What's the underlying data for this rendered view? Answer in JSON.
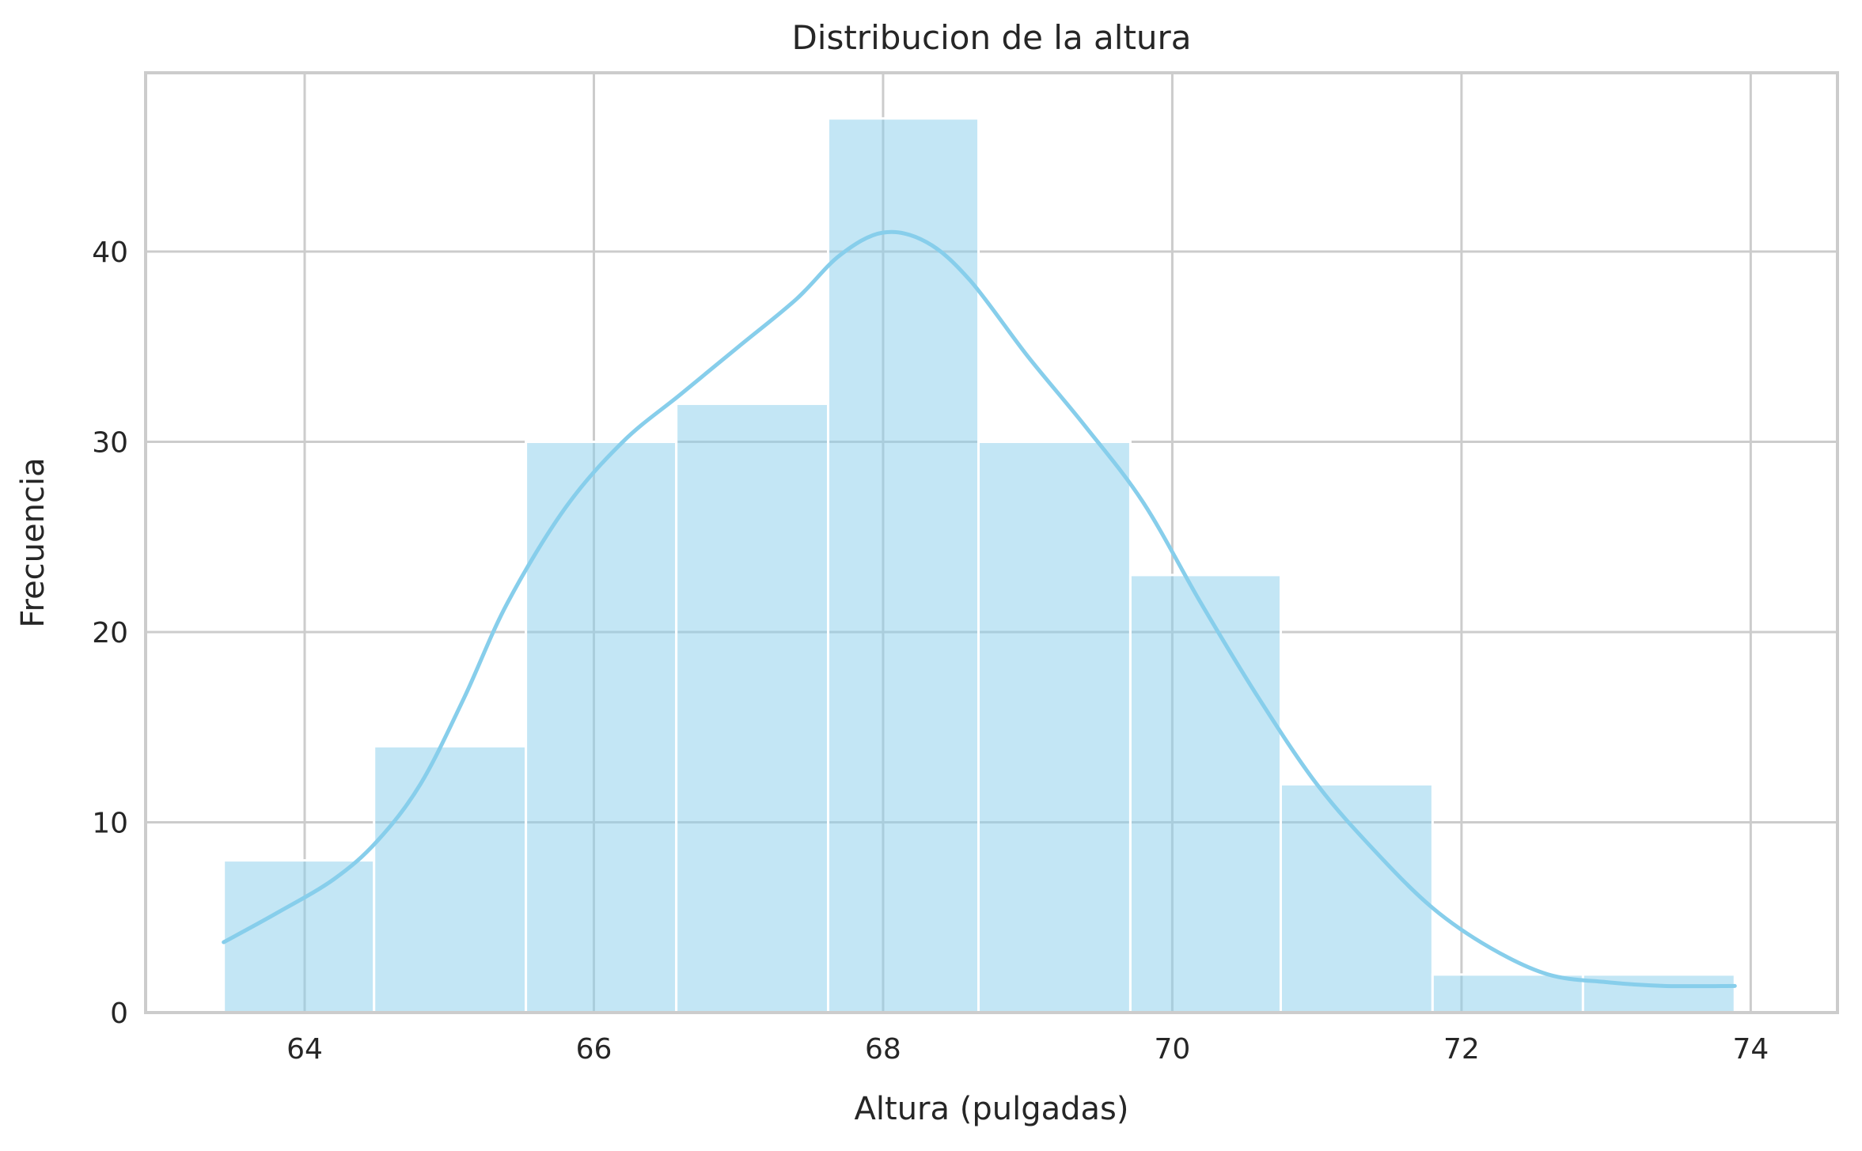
{
  "chart_data": {
    "type": "bar",
    "title": "Distribucion de la altura",
    "xlabel": "Altura (pulgadas)",
    "ylabel": "Frecuencia",
    "xlim": [
      62.9,
      74.6
    ],
    "ylim": [
      0,
      49.4
    ],
    "xticks": [
      64,
      66,
      68,
      70,
      72,
      74
    ],
    "yticks": [
      0,
      10,
      20,
      30,
      40
    ],
    "grid": true,
    "bins": [
      {
        "x0": 63.44,
        "x1": 64.48,
        "count": 8
      },
      {
        "x0": 64.48,
        "x1": 65.53,
        "count": 14
      },
      {
        "x0": 65.53,
        "x1": 66.57,
        "count": 30
      },
      {
        "x0": 66.57,
        "x1": 67.62,
        "count": 32
      },
      {
        "x0": 67.62,
        "x1": 68.66,
        "count": 47
      },
      {
        "x0": 68.66,
        "x1": 69.71,
        "count": 30
      },
      {
        "x0": 69.71,
        "x1": 70.75,
        "count": 23
      },
      {
        "x0": 70.75,
        "x1": 71.8,
        "count": 12
      },
      {
        "x0": 71.8,
        "x1": 72.84,
        "count": 2
      },
      {
        "x0": 72.84,
        "x1": 73.89,
        "count": 2
      }
    ],
    "kde": {
      "x": [
        63.44,
        63.8,
        64.2,
        64.5,
        64.8,
        65.1,
        65.4,
        65.8,
        66.2,
        66.6,
        67.0,
        67.4,
        67.7,
        68.0,
        68.3,
        68.6,
        69.0,
        69.4,
        69.8,
        70.2,
        70.6,
        71.0,
        71.4,
        71.8,
        72.2,
        72.6,
        73.0,
        73.4,
        73.89
      ],
      "y": [
        3.7,
        5.2,
        7.0,
        9.0,
        12.0,
        16.5,
        21.5,
        26.5,
        30.0,
        32.5,
        35.0,
        37.5,
        39.8,
        41.0,
        40.5,
        38.5,
        34.5,
        30.8,
        26.8,
        21.5,
        16.5,
        12.0,
        8.5,
        5.5,
        3.4,
        2.0,
        1.6,
        1.4,
        1.4
      ]
    },
    "colors": {
      "bar_fill": "#87ceeb",
      "bar_fill_opacity": 0.5,
      "kde_line": "#87ceeb",
      "grid": "#cccccc",
      "spine": "#cccccc",
      "text": "#262626"
    }
  }
}
